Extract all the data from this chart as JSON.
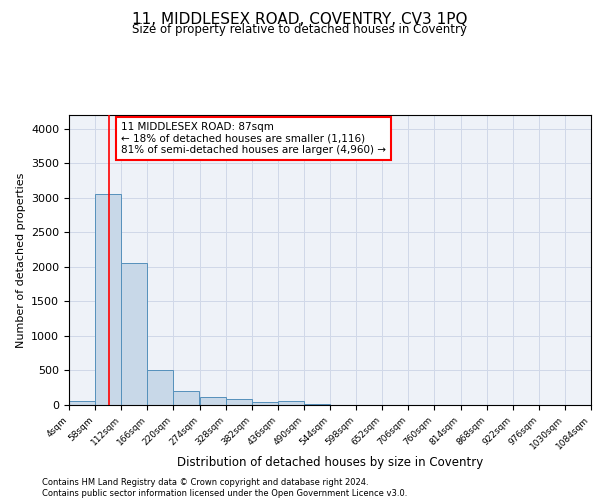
{
  "title": "11, MIDDLESEX ROAD, COVENTRY, CV3 1PQ",
  "subtitle": "Size of property relative to detached houses in Coventry",
  "xlabel": "Distribution of detached houses by size in Coventry",
  "ylabel": "Number of detached properties",
  "bar_color": "#c8d8e8",
  "bar_edge_color": "#5590bb",
  "grid_color": "#d0d8e8",
  "background_color": "#eef2f8",
  "vline_x": 87,
  "vline_color": "red",
  "bin_edges": [
    4,
    58,
    112,
    166,
    220,
    274,
    328,
    382,
    436,
    490,
    544,
    598,
    652,
    706,
    760,
    814,
    868,
    922,
    976,
    1030,
    1084
  ],
  "bar_heights": [
    60,
    3050,
    2050,
    510,
    200,
    110,
    80,
    50,
    55,
    10,
    5,
    5,
    5,
    3,
    3,
    2,
    2,
    2,
    2,
    2
  ],
  "ylim": [
    0,
    4200
  ],
  "yticks": [
    0,
    500,
    1000,
    1500,
    2000,
    2500,
    3000,
    3500,
    4000
  ],
  "annotation_text": "11 MIDDLESEX ROAD: 87sqm\n← 18% of detached houses are smaller (1,116)\n81% of semi-detached houses are larger (4,960) →",
  "annotation_box_color": "white",
  "annotation_box_edge_color": "red",
  "footer_line1": "Contains HM Land Registry data © Crown copyright and database right 2024.",
  "footer_line2": "Contains public sector information licensed under the Open Government Licence v3.0."
}
